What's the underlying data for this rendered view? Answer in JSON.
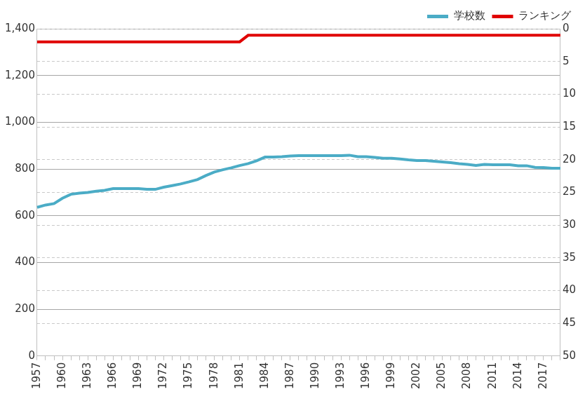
{
  "chart_data": {
    "type": "line",
    "categories": [
      "1957",
      null,
      null,
      "1960",
      null,
      null,
      "1963",
      null,
      null,
      "1966",
      null,
      null,
      "1969",
      null,
      null,
      "1972",
      null,
      null,
      "1975",
      null,
      null,
      "1978",
      null,
      null,
      "1981",
      null,
      null,
      "1984",
      null,
      null,
      "1987",
      null,
      null,
      "1990",
      null,
      null,
      "1993",
      null,
      null,
      "1996",
      null,
      null,
      "1999",
      null,
      null,
      "2002",
      null,
      null,
      "2005",
      null,
      null,
      "2008",
      null,
      null,
      "2011",
      null,
      null,
      "2014",
      null,
      null,
      "2017",
      null,
      null
    ],
    "series": [
      {
        "name": "学校数",
        "color": "#4bacc6",
        "axis": "y",
        "values": [
          636,
          646,
          652,
          675,
          692,
          697,
          700,
          705,
          709,
          716,
          716,
          716,
          716,
          713,
          713,
          722,
          729,
          736,
          745,
          755,
          772,
          787,
          797,
          805,
          815,
          823,
          835,
          851,
          851,
          853,
          856,
          857,
          857,
          857,
          857,
          857,
          857,
          859,
          853,
          853,
          850,
          846,
          846,
          843,
          839,
          836,
          836,
          833,
          830,
          827,
          823,
          820,
          815,
          820,
          818,
          818,
          818,
          814,
          814,
          807,
          806,
          803,
          803
        ]
      },
      {
        "name": "ランキング",
        "color": "#e00000",
        "axis": "y2",
        "values": [
          2,
          2,
          2,
          2,
          2,
          2,
          2,
          2,
          2,
          2,
          2,
          2,
          2,
          2,
          2,
          2,
          2,
          2,
          2,
          2,
          2,
          2,
          2,
          2,
          2,
          1,
          1,
          1,
          1,
          1,
          1,
          1,
          1,
          1,
          1,
          1,
          1,
          1,
          1,
          1,
          1,
          1,
          1,
          1,
          1,
          1,
          1,
          1,
          1,
          1,
          1,
          1,
          1,
          1,
          1,
          1,
          1,
          1,
          1,
          1,
          1,
          1,
          1
        ]
      }
    ],
    "ylim": [
      0,
      1400
    ],
    "yticks": [
      0,
      200,
      400,
      600,
      800,
      {
        "value": 1000,
        "label": "1,000"
      },
      {
        "value": 1200,
        "label": "1,200"
      },
      {
        "value": 1400,
        "label": "1,400"
      }
    ],
    "y2lim": [
      50,
      0
    ],
    "y2ticks": [
      0,
      5,
      10,
      15,
      20,
      25,
      30,
      35,
      40,
      45,
      50
    ],
    "grid": true,
    "legend": "top-right"
  }
}
